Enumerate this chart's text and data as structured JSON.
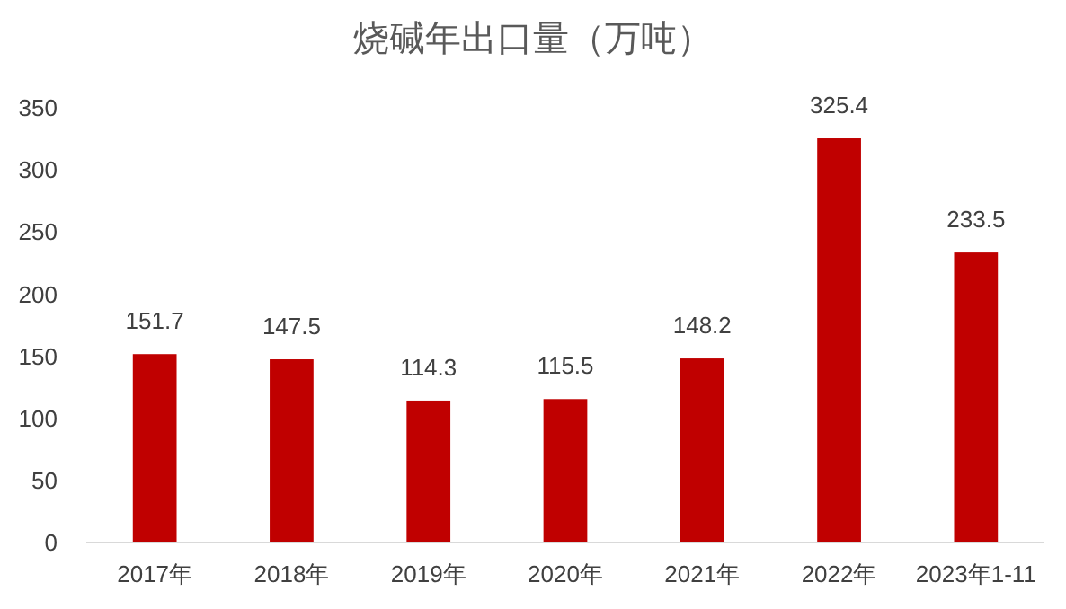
{
  "chart_data": {
    "type": "bar",
    "title": "烧碱年出口量（万吨）",
    "categories": [
      "2017年",
      "2018年",
      "2019年",
      "2020年",
      "2021年",
      "2022年",
      "2023年1-11"
    ],
    "values": [
      151.7,
      147.5,
      114.3,
      115.5,
      148.2,
      325.4,
      233.5
    ],
    "color": "#c00000",
    "ylim": [
      0,
      350
    ],
    "yticks": [
      0,
      50,
      100,
      150,
      200,
      250,
      300,
      350
    ],
    "grid": false,
    "data_labels": true
  }
}
